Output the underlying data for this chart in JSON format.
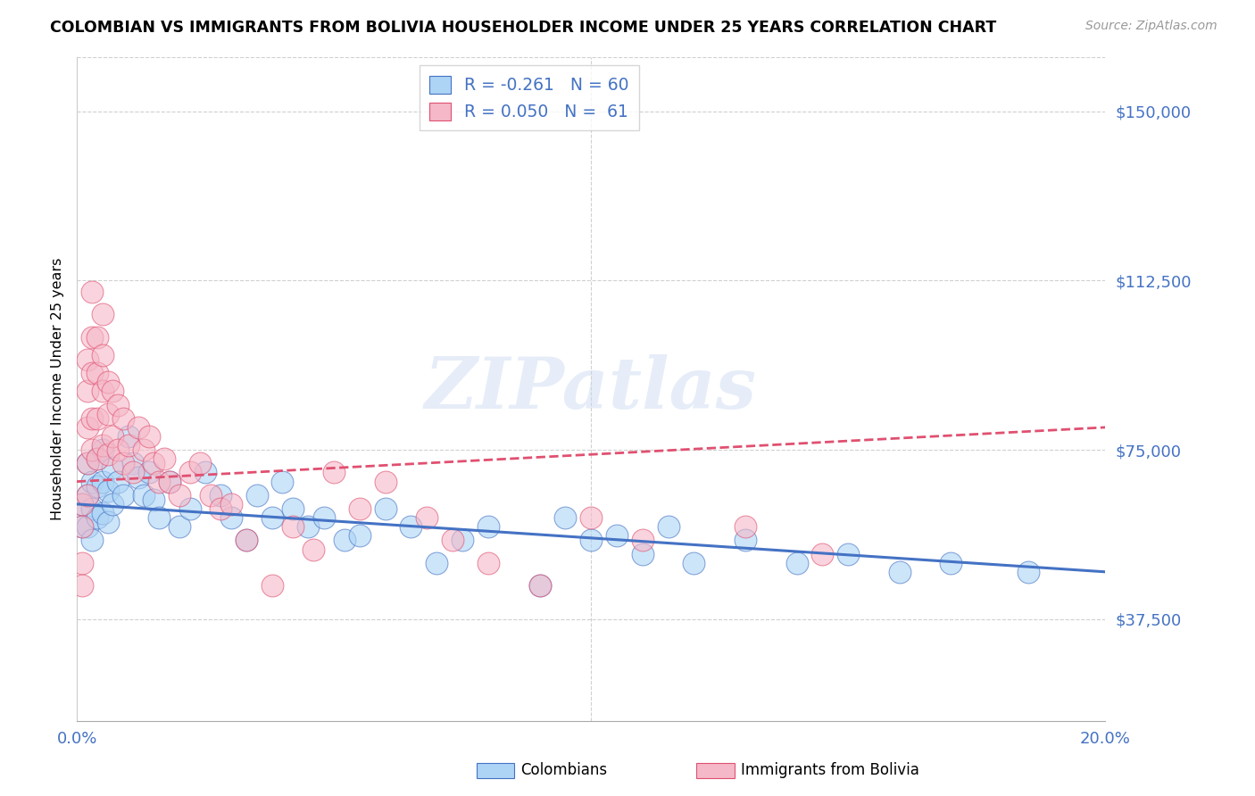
{
  "title": "COLOMBIAN VS IMMIGRANTS FROM BOLIVIA HOUSEHOLDER INCOME UNDER 25 YEARS CORRELATION CHART",
  "source": "Source: ZipAtlas.com",
  "ylabel": "Householder Income Under 25 years",
  "ytick_labels": [
    "$37,500",
    "$75,000",
    "$112,500",
    "$150,000"
  ],
  "ytick_values": [
    37500,
    75000,
    112500,
    150000
  ],
  "ymin": 15000,
  "ymax": 162000,
  "xmin": 0.0,
  "xmax": 0.2,
  "R_colombian": -0.261,
  "R_bolivia": 0.05,
  "color_colombian": "#ADD4F5",
  "color_bolivia": "#F5B8C8",
  "color_line_colombian": "#4472C4",
  "color_line_bolivia": "#E05070",
  "watermark": "ZIPatlas",
  "colombian_x": [
    0.001,
    0.001,
    0.002,
    0.002,
    0.002,
    0.003,
    0.003,
    0.003,
    0.004,
    0.004,
    0.004,
    0.005,
    0.005,
    0.005,
    0.006,
    0.006,
    0.007,
    0.007,
    0.008,
    0.009,
    0.01,
    0.011,
    0.012,
    0.013,
    0.014,
    0.015,
    0.016,
    0.018,
    0.02,
    0.022,
    0.025,
    0.028,
    0.03,
    0.033,
    0.035,
    0.038,
    0.04,
    0.042,
    0.045,
    0.048,
    0.052,
    0.055,
    0.06,
    0.065,
    0.07,
    0.075,
    0.08,
    0.09,
    0.095,
    0.1,
    0.105,
    0.11,
    0.115,
    0.12,
    0.13,
    0.14,
    0.15,
    0.16,
    0.17,
    0.185
  ],
  "colombian_y": [
    63000,
    58000,
    72000,
    65000,
    58000,
    68000,
    62000,
    55000,
    73000,
    67000,
    60000,
    75000,
    68000,
    61000,
    66000,
    59000,
    71000,
    63000,
    68000,
    65000,
    78000,
    72000,
    69000,
    65000,
    70000,
    64000,
    60000,
    68000,
    58000,
    62000,
    70000,
    65000,
    60000,
    55000,
    65000,
    60000,
    68000,
    62000,
    58000,
    60000,
    55000,
    56000,
    62000,
    58000,
    50000,
    55000,
    58000,
    45000,
    60000,
    55000,
    56000,
    52000,
    58000,
    50000,
    55000,
    50000,
    52000,
    48000,
    50000,
    48000
  ],
  "bolivia_x": [
    0.001,
    0.001,
    0.001,
    0.001,
    0.002,
    0.002,
    0.002,
    0.002,
    0.002,
    0.003,
    0.003,
    0.003,
    0.003,
    0.003,
    0.004,
    0.004,
    0.004,
    0.004,
    0.005,
    0.005,
    0.005,
    0.005,
    0.006,
    0.006,
    0.006,
    0.007,
    0.007,
    0.008,
    0.008,
    0.009,
    0.009,
    0.01,
    0.011,
    0.012,
    0.013,
    0.014,
    0.015,
    0.016,
    0.017,
    0.018,
    0.02,
    0.022,
    0.024,
    0.026,
    0.028,
    0.03,
    0.033,
    0.038,
    0.042,
    0.046,
    0.05,
    0.055,
    0.06,
    0.068,
    0.073,
    0.08,
    0.09,
    0.1,
    0.11,
    0.13,
    0.145
  ],
  "bolivia_y": [
    63000,
    58000,
    50000,
    45000,
    95000,
    88000,
    80000,
    72000,
    65000,
    110000,
    100000,
    92000,
    82000,
    75000,
    100000,
    92000,
    82000,
    73000,
    105000,
    96000,
    88000,
    76000,
    90000,
    83000,
    74000,
    88000,
    78000,
    85000,
    75000,
    82000,
    72000,
    76000,
    70000,
    80000,
    75000,
    78000,
    72000,
    68000,
    73000,
    68000,
    65000,
    70000,
    72000,
    65000,
    62000,
    63000,
    55000,
    45000,
    58000,
    53000,
    70000,
    62000,
    68000,
    60000,
    55000,
    50000,
    45000,
    60000,
    55000,
    58000,
    52000
  ]
}
